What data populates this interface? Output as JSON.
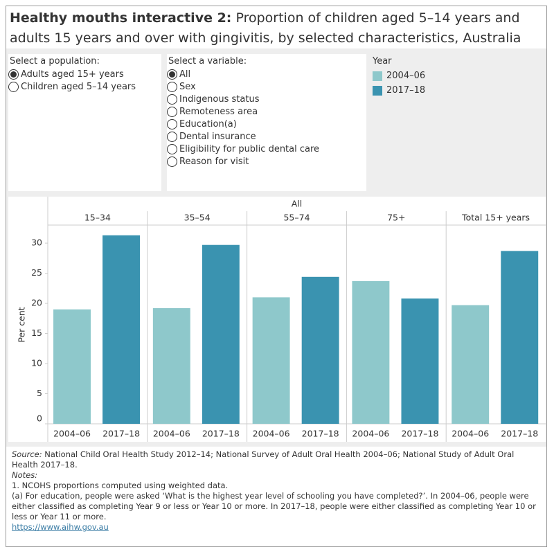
{
  "header": {
    "title_bold": "Healthy mouths interactive 2:",
    "title": "Proportion of children aged 5–14 years and adults 15 years and over with gingivitis, by selected characteristics, Australia"
  },
  "population": {
    "label": "Select a population:",
    "options": [
      "Adults aged 15+ years",
      "Children aged 5–14 years"
    ],
    "selected": 0
  },
  "variable": {
    "label": "Select a variable:",
    "options": [
      "All",
      "Sex",
      "Indigenous status",
      "Remoteness area",
      "Education(a)",
      "Dental insurance",
      "Eligibility for public dental care",
      "Reason for visit"
    ],
    "selected": 0
  },
  "chart_data": {
    "type": "bar",
    "legend_title": "Year",
    "facet_title": "All",
    "y_label": "Per cent",
    "categories": [
      "15–34",
      "35–54",
      "55–74",
      "75+",
      "Total 15+ years"
    ],
    "series": [
      {
        "name": "2004–06",
        "color": "#8ec8cb",
        "values": [
          19.0,
          19.2,
          21.0,
          23.7,
          19.7
        ]
      },
      {
        "name": "2017–18",
        "color": "#3a93b0",
        "values": [
          31.3,
          29.7,
          24.4,
          20.8,
          28.7
        ]
      }
    ],
    "ylim": [
      0,
      33
    ],
    "yticks": [
      0,
      5,
      10,
      15,
      20,
      25,
      30
    ],
    "grid": false
  },
  "footer": {
    "source_label": "Source:",
    "source": "National Child Oral Health Study 2012–14; National Survey of Adult Oral Health 2004–06; National Study of Adult Oral Health 2017–18.",
    "notes_label": "Notes:",
    "notes": [
      "1. NCOHS proportions computed using weighted data.",
      "(a) For education, people were asked ‘What is the highest year level of schooling you have completed?’. In 2004–06, people were either classified as completing Year 9 or less or Year 10 or more. In 2017–18, people were either classified as completing Year 10 or less or Year 11 or more."
    ],
    "link": "https://www.aihw.gov.au"
  }
}
